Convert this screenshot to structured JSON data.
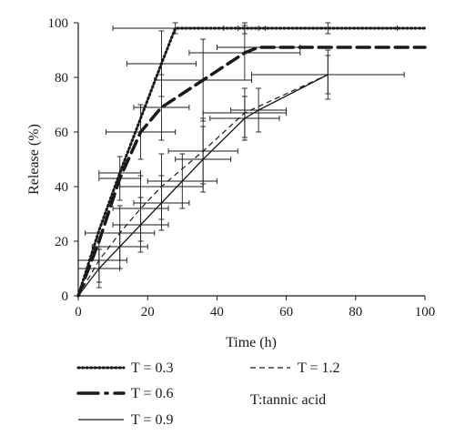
{
  "chart_data": {
    "type": "line",
    "title": "",
    "xlabel": "Time (h)",
    "ylabel": "Release (%)",
    "xlim": [
      0,
      100
    ],
    "ylim": [
      0,
      100
    ],
    "xticks": [
      0,
      20,
      40,
      60,
      80,
      100
    ],
    "yticks": [
      0,
      20,
      40,
      60,
      80,
      100
    ],
    "grid": false,
    "legend_placement": "bottom",
    "legend_note": "T:tannic acid",
    "series": [
      {
        "name": "T = 0.3",
        "style": "dotted",
        "x": [
          0,
          6,
          12,
          24,
          28,
          48,
          72,
          100
        ],
        "y": [
          0,
          24,
          45,
          85,
          98,
          98,
          98,
          98
        ],
        "xerr": [
          0,
          0,
          6,
          10,
          18,
          6,
          20,
          0
        ],
        "yerr": [
          0,
          0,
          0,
          12,
          2,
          2,
          2,
          0
        ]
      },
      {
        "name": "T = 0.6",
        "style": "long-dash",
        "x": [
          0,
          6,
          12,
          18,
          24,
          36,
          48,
          52,
          72,
          100
        ],
        "y": [
          0,
          20,
          43,
          60,
          69,
          79,
          89,
          91,
          91,
          91
        ],
        "xerr": [
          0,
          0,
          6,
          10,
          8,
          14,
          16,
          12,
          0,
          0
        ],
        "yerr": [
          0,
          0,
          8,
          10,
          12,
          15,
          10,
          0,
          0,
          0
        ]
      },
      {
        "name": "T = 0.9",
        "style": "solid",
        "x": [
          0,
          6,
          12,
          18,
          24,
          30,
          36,
          48,
          52,
          72
        ],
        "y": [
          0,
          10,
          18,
          26,
          34,
          42,
          50,
          65,
          68,
          81
        ],
        "xerr": [
          0,
          6,
          8,
          8,
          8,
          10,
          8,
          10,
          8,
          22
        ],
        "yerr": [
          0,
          7,
          8,
          10,
          10,
          10,
          12,
          8,
          8,
          7
        ]
      },
      {
        "name": "T = 1.2",
        "style": "short-dash",
        "x": [
          0,
          6,
          12,
          18,
          24,
          36,
          48,
          72
        ],
        "y": [
          0,
          13,
          23,
          32,
          40,
          53,
          67,
          81
        ],
        "xerr": [
          0,
          8,
          10,
          8,
          12,
          10,
          12,
          0
        ],
        "yerr": [
          0,
          8,
          10,
          12,
          12,
          12,
          9,
          9
        ]
      }
    ]
  }
}
